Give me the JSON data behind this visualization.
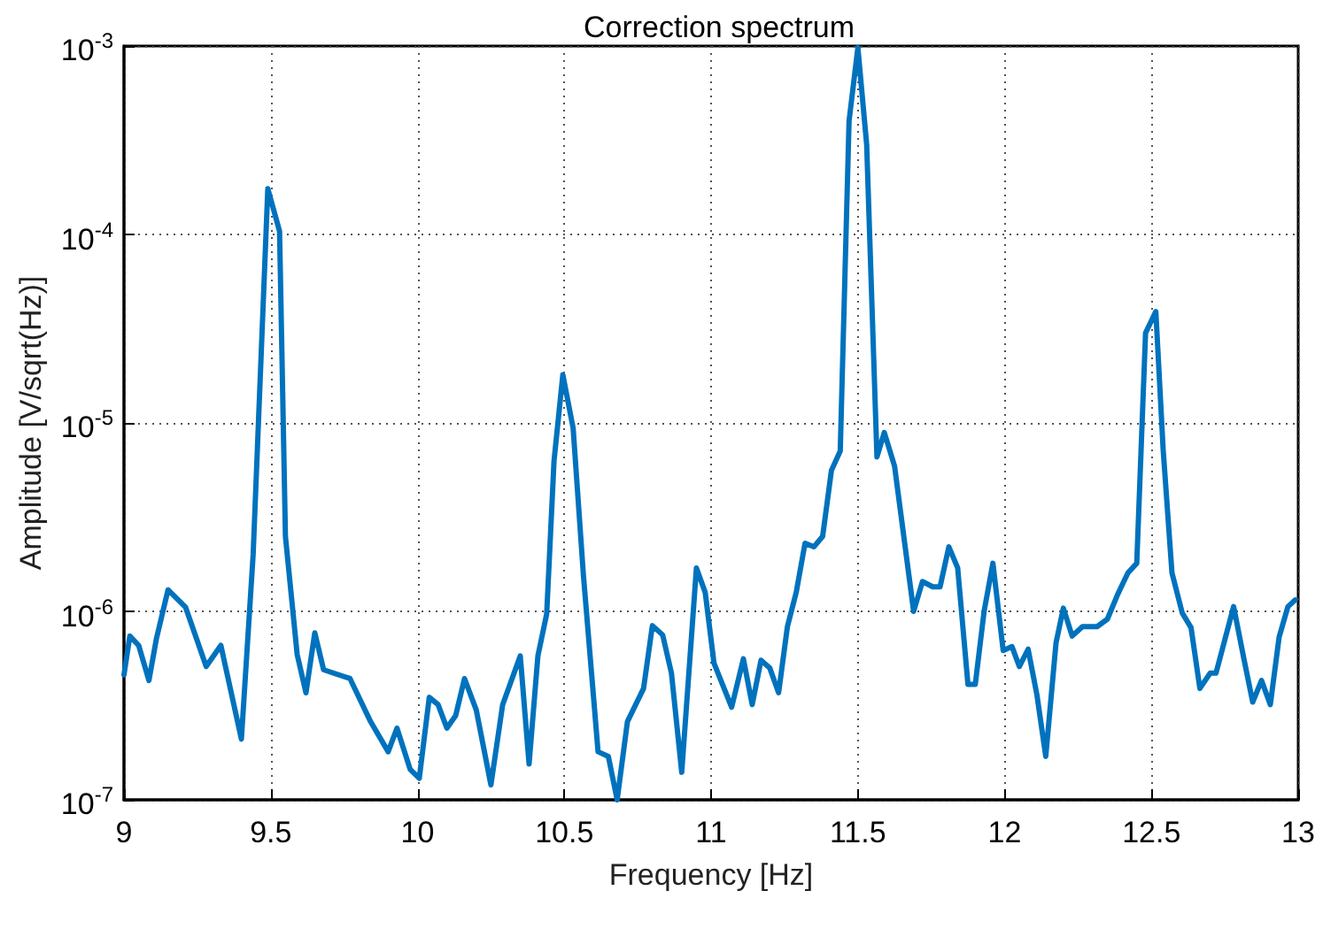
{
  "chart_data": {
    "type": "line",
    "title": "Correction spectrum",
    "xlabel": "Frequency [Hz]",
    "ylabel": "Amplitude [V/sqrt(Hz)]",
    "log": "y",
    "grid": true,
    "marker": "none",
    "line_style": "solid",
    "xlim": [
      9,
      13
    ],
    "xticks": [
      9,
      9.5,
      10,
      10.5,
      11,
      11.5,
      12,
      12.5,
      13
    ],
    "ylim": [
      1e-07,
      0.001
    ],
    "yticks": [
      {
        "value": 1e-07,
        "label": "10$^{-7}$"
      },
      {
        "value": 1e-06,
        "label": "10$^{-6}$"
      },
      {
        "value": 1e-05,
        "label": "10$^{-5}$"
      },
      {
        "value": 0.0001,
        "label": "10$^{-4}$"
      },
      {
        "value": 0.001,
        "label": "10$^{-3}$"
      }
    ],
    "series": [
      {
        "color": "#0072bd",
        "x": [
          9.0,
          9.02,
          9.05,
          9.085,
          9.11,
          9.15,
          9.21,
          9.28,
          9.33,
          9.4,
          9.44,
          9.49,
          9.53,
          9.55,
          9.59,
          9.62,
          9.65,
          9.68,
          9.77,
          9.84,
          9.9,
          9.93,
          9.975,
          10.006,
          10.04,
          10.07,
          10.1,
          10.13,
          10.16,
          10.2,
          10.25,
          10.29,
          10.35,
          10.38,
          10.41,
          10.44,
          10.465,
          10.495,
          10.53,
          10.565,
          10.615,
          10.65,
          10.68,
          10.715,
          10.77,
          10.8,
          10.835,
          10.865,
          10.9,
          10.95,
          10.98,
          11.01,
          11.07,
          11.11,
          11.14,
          11.17,
          11.2,
          11.23,
          11.26,
          11.29,
          11.32,
          11.35,
          11.38,
          11.41,
          11.44,
          11.47,
          11.5,
          11.53,
          11.565,
          11.59,
          11.625,
          11.69,
          11.72,
          11.755,
          11.78,
          11.81,
          11.84,
          11.875,
          11.9,
          11.93,
          11.96,
          11.995,
          12.025,
          12.05,
          12.08,
          12.11,
          12.14,
          12.175,
          12.2,
          12.23,
          12.265,
          12.315,
          12.35,
          12.385,
          12.42,
          12.45,
          12.48,
          12.515,
          12.54,
          12.57,
          12.605,
          12.635,
          12.665,
          12.7,
          12.72,
          12.78,
          12.815,
          12.845,
          12.875,
          12.905,
          12.935,
          12.965,
          12.99
        ],
        "values": [
          4.6e-07,
          7.4e-07,
          6.6e-07,
          4.3e-07,
          7.1e-07,
          1.3e-06,
          1.05e-06,
          5.1e-07,
          6.6e-07,
          2.1e-07,
          2e-06,
          0.000175,
          0.000104,
          2.5e-06,
          5.9e-07,
          3.7e-07,
          7.7e-07,
          4.9e-07,
          4.4e-07,
          2.6e-07,
          1.8e-07,
          2.4e-07,
          1.45e-07,
          1.3e-07,
          3.5e-07,
          3.2e-07,
          2.4e-07,
          2.8e-07,
          4.4e-07,
          3e-07,
          1.2e-07,
          3.2e-07,
          5.8e-07,
          1.55e-07,
          5.8e-07,
          9.7e-07,
          6.3e-06,
          1.8e-05,
          9.4e-06,
          1.56e-06,
          1.8e-07,
          1.7e-07,
          1e-07,
          2.6e-07,
          3.9e-07,
          8.4e-07,
          7.5e-07,
          4.7e-07,
          1.4e-07,
          1.7e-06,
          1.26e-06,
          5.3e-07,
          3.1e-07,
          5.6e-07,
          3.2e-07,
          5.5e-07,
          5e-07,
          3.7e-07,
          8.3e-07,
          1.26e-06,
          2.3e-06,
          2.2e-06,
          2.5e-06,
          5.6e-06,
          7.1e-06,
          0.0004,
          0.00098,
          0.0003,
          6.6e-06,
          8.9e-06,
          5.9e-06,
          1e-06,
          1.44e-06,
          1.35e-06,
          1.35e-06,
          2.2e-06,
          1.7e-06,
          4.1e-07,
          4.1e-07,
          1e-06,
          1.8e-06,
          6.2e-07,
          6.5e-07,
          5.1e-07,
          6.3e-07,
          3.6e-07,
          1.7e-07,
          6.8e-07,
          1.04e-06,
          7.4e-07,
          8.3e-07,
          8.3e-07,
          9.1e-07,
          1.23e-06,
          1.6e-06,
          1.8e-06,
          3e-05,
          3.9e-05,
          7.2e-06,
          1.6e-06,
          9.8e-07,
          8.2e-07,
          3.9e-07,
          4.7e-07,
          4.7e-07,
          1.06e-06,
          5.6e-07,
          3.3e-07,
          4.3e-07,
          3.2e-07,
          7.3e-07,
          1.06e-06,
          1.15e-06
        ]
      }
    ]
  }
}
